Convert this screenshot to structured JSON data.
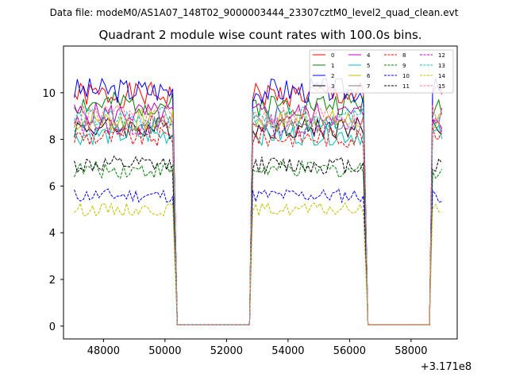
{
  "header": "Data file: modeM0/AS1A07_148T02_9000003444_23307cztM0_level2_quad_clean.evt",
  "chart_data": {
    "type": "line",
    "title": "Quadrant 2 module wise count rates with 100.0s bins.",
    "xlabel": "",
    "ylabel": "",
    "x_offset_label": "+3.171e8",
    "xlim": [
      46700,
      59500
    ],
    "ylim": [
      -0.55,
      12.0
    ],
    "xticks": [
      48000,
      50000,
      52000,
      54000,
      56000,
      58000
    ],
    "xtick_labels": [
      "48000",
      "50000",
      "52000",
      "54000",
      "56000",
      "58000"
    ],
    "yticks": [
      0,
      2,
      4,
      6,
      8,
      10
    ],
    "ytick_labels": [
      "0",
      "2",
      "4",
      "6",
      "8",
      "10"
    ],
    "grid": false,
    "legend_position": "top-right",
    "bin_size": 100,
    "segments": [
      {
        "start": 47050,
        "end": 50250
      },
      {
        "start": 52850,
        "end": 56450
      },
      {
        "start": 58700,
        "end": 59050
      }
    ],
    "gap_ranges": [
      [
        50400,
        52750
      ],
      [
        56600,
        58600
      ]
    ],
    "series": [
      {
        "name": "0",
        "color": "#ff0000",
        "dash": "solid",
        "level": 9.9,
        "seed": 1
      },
      {
        "name": "1",
        "color": "#008000",
        "dash": "solid",
        "level": 9.5,
        "seed": 2
      },
      {
        "name": "2",
        "color": "#0000ff",
        "dash": "solid",
        "level": 10.1,
        "seed": 3
      },
      {
        "name": "3",
        "color": "#000000",
        "dash": "solid",
        "level": 8.5,
        "seed": 4
      },
      {
        "name": "4",
        "color": "#bf00bf",
        "dash": "solid",
        "level": 9.1,
        "seed": 5
      },
      {
        "name": "5",
        "color": "#00bfbf",
        "dash": "solid",
        "level": 8.2,
        "seed": 6
      },
      {
        "name": "6",
        "color": "#bfbf00",
        "dash": "solid",
        "level": 8.8,
        "seed": 7
      },
      {
        "name": "7",
        "color": "#808080",
        "dash": "solid",
        "level": 8.6,
        "seed": 8
      },
      {
        "name": "8",
        "color": "#ff0000",
        "dash": "dashed",
        "level": 8.1,
        "seed": 9
      },
      {
        "name": "9",
        "color": "#008000",
        "dash": "dashed",
        "level": 6.7,
        "seed": 10
      },
      {
        "name": "10",
        "color": "#0000ff",
        "dash": "dashed",
        "level": 5.6,
        "seed": 11
      },
      {
        "name": "11",
        "color": "#000000",
        "dash": "dashed",
        "level": 6.9,
        "seed": 12
      },
      {
        "name": "12",
        "color": "#bf00bf",
        "dash": "dashed",
        "level": 8.6,
        "seed": 13
      },
      {
        "name": "13",
        "color": "#00bfbf",
        "dash": "dashed",
        "level": 8.9,
        "seed": 14
      },
      {
        "name": "14",
        "color": "#bfbf00",
        "dash": "dashed",
        "level": 5.0,
        "seed": 15
      },
      {
        "name": "15",
        "color": "#ff8080",
        "dash": "dashed",
        "level": 9.0,
        "seed": 16
      }
    ]
  }
}
